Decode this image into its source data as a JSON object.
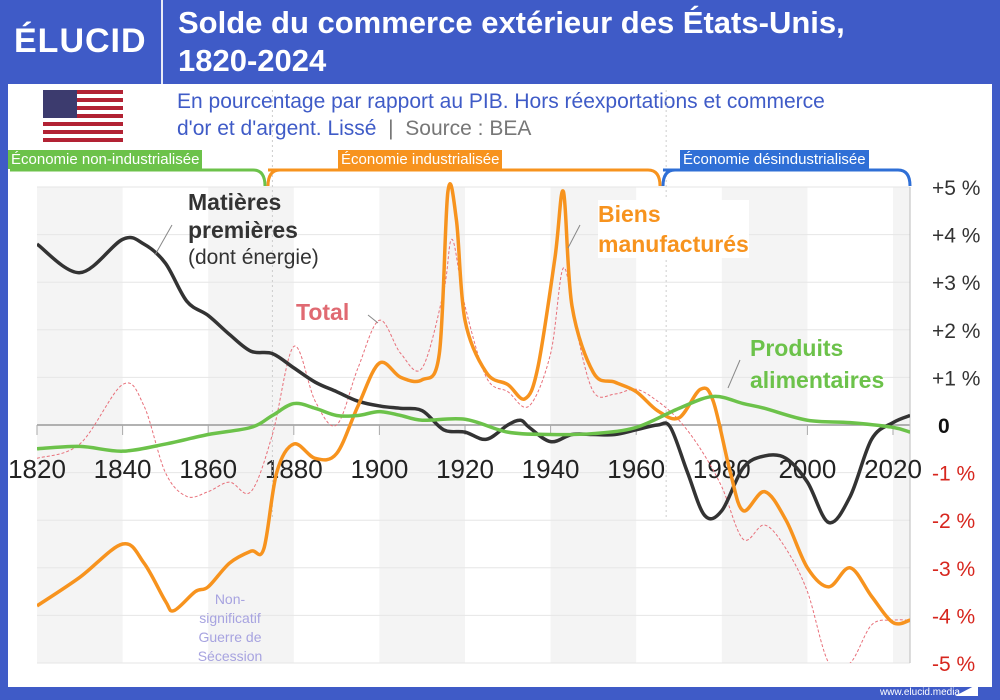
{
  "header": {
    "logo": "ÉLUCID",
    "title_line1": "Solde du commerce extérieur des États-Unis,",
    "title_line2": "1820-2024"
  },
  "subtitle": {
    "line1": "En pourcentage par rapport au PIB. Hors réexportations et commerce",
    "line2": "d'or et d'argent. Lissé",
    "source": "Source : BEA"
  },
  "eras": [
    {
      "label": "Économie non-industrialisée",
      "color": "#6cc24a"
    },
    {
      "label": "Économie industrialisée",
      "color": "#f7931e"
    },
    {
      "label": "Économie désindustrialisée",
      "color": "#2f6fd6"
    }
  ],
  "annotation": {
    "line1": "Non-",
    "line2": "significatif",
    "line3": "Guerre de",
    "line4": "Sécession"
  },
  "footer": "www.elucid.media",
  "chart_data": {
    "type": "line",
    "xlim": [
      1820,
      2024
    ],
    "ylim": [
      -5,
      5
    ],
    "x_ticks": [
      "1820",
      "1840",
      "1860",
      "1880",
      "1900",
      "1920",
      "1940",
      "1960",
      "1980",
      "2000",
      "2020"
    ],
    "y_ticks": [
      {
        "v": 5,
        "label": "+5 %"
      },
      {
        "v": 4,
        "label": "+4 %"
      },
      {
        "v": 3,
        "label": "+3 %"
      },
      {
        "v": 2,
        "label": "+2 %"
      },
      {
        "v": 1,
        "label": "+1 %"
      },
      {
        "v": 0,
        "label": "0"
      },
      {
        "v": -1,
        "label": "-1 %"
      },
      {
        "v": -2,
        "label": "-2 %"
      },
      {
        "v": -3,
        "label": "-3 %"
      },
      {
        "v": -4,
        "label": "-4 %"
      },
      {
        "v": -5,
        "label": "-5 %"
      }
    ],
    "grid": true,
    "series": [
      {
        "name": "Total",
        "color": "#e8707a",
        "style": "dashed-thin",
        "x": [
          1820,
          1830,
          1840,
          1845,
          1850,
          1855,
          1860,
          1865,
          1870,
          1875,
          1880,
          1885,
          1890,
          1895,
          1900,
          1905,
          1910,
          1915,
          1917,
          1920,
          1925,
          1930,
          1935,
          1940,
          1943,
          1946,
          1950,
          1955,
          1960,
          1965,
          1970,
          1975,
          1980,
          1985,
          1990,
          1995,
          2000,
          2005,
          2010,
          2015,
          2020,
          2024
        ],
        "y": [
          -0.7,
          -0.4,
          0.85,
          0.4,
          -1.0,
          -1.5,
          -1.4,
          -1.2,
          -1.4,
          -0.2,
          1.65,
          0.5,
          0.0,
          1.2,
          2.2,
          1.5,
          1.2,
          2.8,
          3.9,
          2.5,
          1.0,
          0.7,
          0.4,
          1.5,
          3.3,
          2.0,
          0.7,
          0.65,
          0.75,
          0.5,
          0.1,
          -0.5,
          -1.3,
          -2.4,
          -2.1,
          -2.6,
          -3.5,
          -5.0,
          -5.0,
          -4.2,
          -4.1,
          -4.1
        ]
      },
      {
        "name": "Matières premières (dont énergie)",
        "color": "#333333",
        "x": [
          1820,
          1830,
          1840,
          1845,
          1850,
          1855,
          1860,
          1865,
          1870,
          1875,
          1880,
          1885,
          1890,
          1895,
          1900,
          1905,
          1910,
          1915,
          1920,
          1925,
          1930,
          1933,
          1935,
          1940,
          1945,
          1950,
          1955,
          1960,
          1965,
          1968,
          1972,
          1976,
          1980,
          1985,
          1990,
          1995,
          2000,
          2005,
          2010,
          2015,
          2020,
          2024
        ],
        "y": [
          3.8,
          3.2,
          3.9,
          3.8,
          3.4,
          2.6,
          2.3,
          1.9,
          1.55,
          1.5,
          1.2,
          0.9,
          0.7,
          0.5,
          0.4,
          0.35,
          0.3,
          -0.1,
          -0.15,
          -0.3,
          0.0,
          0.1,
          -0.05,
          -0.35,
          -0.2,
          -0.2,
          -0.2,
          -0.1,
          0.0,
          -0.05,
          -1.0,
          -1.9,
          -1.8,
          -0.9,
          -0.65,
          -0.7,
          -1.2,
          -2.05,
          -1.5,
          -0.3,
          0.05,
          0.2
        ]
      },
      {
        "name": "Biens manufacturés",
        "color": "#f7931e",
        "x": [
          1820,
          1830,
          1840,
          1845,
          1850,
          1852,
          1857,
          1860,
          1865,
          1870,
          1873,
          1876,
          1880,
          1885,
          1890,
          1895,
          1900,
          1905,
          1910,
          1914,
          1916,
          1918,
          1920,
          1925,
          1930,
          1934,
          1937,
          1941,
          1943,
          1945,
          1950,
          1955,
          1960,
          1965,
          1970,
          1975,
          1978,
          1982,
          1985,
          1990,
          1995,
          2000,
          2005,
          2010,
          2015,
          2020,
          2024
        ],
        "y": [
          -3.8,
          -3.2,
          -2.5,
          -2.9,
          -3.7,
          -3.9,
          -3.5,
          -3.4,
          -2.9,
          -2.65,
          -2.6,
          -1.0,
          -0.4,
          -0.7,
          -0.6,
          0.4,
          1.3,
          1.0,
          0.95,
          1.5,
          4.9,
          4.3,
          2.2,
          1.1,
          0.85,
          0.55,
          1.2,
          3.5,
          4.9,
          2.5,
          1.1,
          0.9,
          0.7,
          0.3,
          0.15,
          0.75,
          0.5,
          -1.0,
          -1.8,
          -1.4,
          -2.0,
          -3.0,
          -3.4,
          -3.0,
          -3.6,
          -4.15,
          -4.1
        ]
      },
      {
        "name": "Produits alimentaires",
        "color": "#6cc24a",
        "x": [
          1820,
          1830,
          1840,
          1850,
          1860,
          1870,
          1875,
          1880,
          1885,
          1890,
          1895,
          1900,
          1905,
          1910,
          1920,
          1930,
          1940,
          1950,
          1960,
          1970,
          1978,
          1985,
          1990,
          2000,
          2010,
          2020,
          2024
        ],
        "y": [
          -0.5,
          -0.45,
          -0.55,
          -0.4,
          -0.2,
          -0.05,
          0.2,
          0.45,
          0.35,
          0.2,
          0.2,
          0.28,
          0.2,
          0.1,
          0.12,
          -0.15,
          -0.2,
          -0.18,
          -0.05,
          0.35,
          0.6,
          0.45,
          0.35,
          0.1,
          0.05,
          -0.05,
          -0.15
        ]
      }
    ],
    "labels": {
      "total": "Total",
      "matieres_1": "Matières",
      "matieres_2": "premières",
      "matieres_3": "(dont énergie)",
      "biens_1": "Biens",
      "biens_2": "manufacturés",
      "produits_1": "Produits",
      "produits_2": "alimentaires"
    },
    "era_boundaries": [
      1875,
      1967
    ]
  }
}
